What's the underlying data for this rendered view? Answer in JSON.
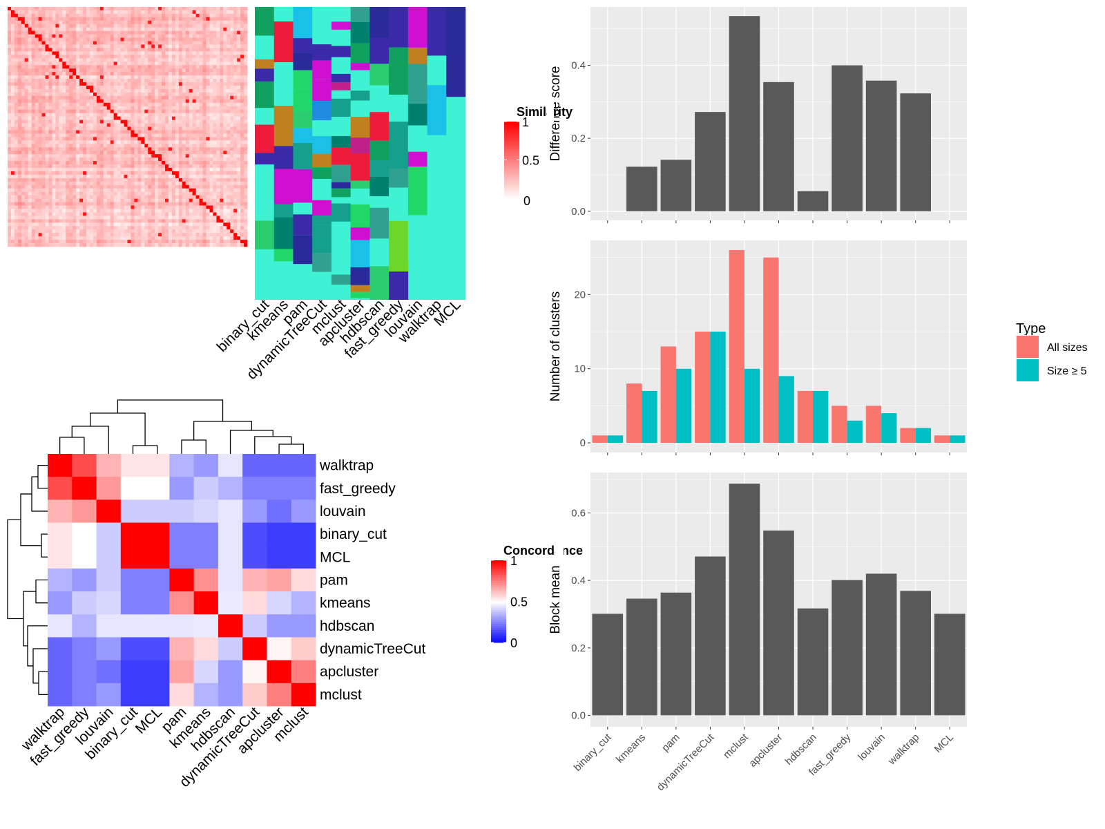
{
  "methods_order": [
    "binary_cut",
    "kmeans",
    "pam",
    "dynamicTreeCut",
    "mclust",
    "apcluster",
    "hdbscan",
    "fast_greedy",
    "louvain",
    "walktrap",
    "MCL"
  ],
  "similarity_legend": {
    "title": "Similarity",
    "ticks": [
      "1",
      "0.5",
      "0"
    ]
  },
  "concordance_legend": {
    "title": "Concordance",
    "ticks": [
      "1",
      "0.5",
      "0"
    ]
  },
  "type_legend": {
    "title": "Type",
    "items": [
      {
        "label": "All sizes",
        "color": "#F8766D"
      },
      {
        "label": "Size ≥ 5",
        "color": "#00BFC4"
      }
    ]
  },
  "colors": {
    "bar": "#595959",
    "panel_bg": "#EBEBEB",
    "grid": "#FFFFFF",
    "all_sizes": "#F8766D",
    "size_ge5": "#00BFC4"
  },
  "chart_data": [
    {
      "type": "heatmap",
      "name": "similarity_heatmap",
      "title": "",
      "legend_title": "Similarity",
      "range": [
        0,
        1
      ]
    },
    {
      "type": "heatmap",
      "name": "cluster_assignment_heatmap",
      "columns": [
        "binary_cut",
        "kmeans",
        "pam",
        "dynamicTreeCut",
        "mclust",
        "apcluster",
        "hdbscan",
        "fast_greedy",
        "louvain",
        "walktrap",
        "MCL"
      ]
    },
    {
      "type": "heatmap",
      "name": "concordance_heatmap",
      "legend_title": "Concordance",
      "range": [
        0,
        1
      ],
      "rows": [
        "walktrap",
        "fast_greedy",
        "louvain",
        "binary_cut",
        "MCL",
        "pam",
        "kmeans",
        "hdbscan",
        "dynamicTreeCut",
        "apcluster",
        "mclust"
      ],
      "columns": [
        "walktrap",
        "fast_greedy",
        "louvain",
        "binary_cut",
        "MCL",
        "pam",
        "kmeans",
        "hdbscan",
        "dynamicTreeCut",
        "apcluster",
        "mclust"
      ],
      "values": [
        [
          1.0,
          0.85,
          0.65,
          0.55,
          0.55,
          0.35,
          0.3,
          0.45,
          0.2,
          0.2,
          0.2
        ],
        [
          0.85,
          1.0,
          0.7,
          0.5,
          0.5,
          0.3,
          0.4,
          0.35,
          0.25,
          0.25,
          0.25
        ],
        [
          0.65,
          0.7,
          1.0,
          0.4,
          0.4,
          0.4,
          0.42,
          0.45,
          0.3,
          0.22,
          0.3
        ],
        [
          0.55,
          0.5,
          0.4,
          1.0,
          1.0,
          0.25,
          0.25,
          0.45,
          0.15,
          0.12,
          0.12
        ],
        [
          0.55,
          0.5,
          0.4,
          1.0,
          1.0,
          0.25,
          0.25,
          0.45,
          0.15,
          0.12,
          0.12
        ],
        [
          0.35,
          0.3,
          0.4,
          0.25,
          0.25,
          1.0,
          0.72,
          0.45,
          0.65,
          0.68,
          0.57
        ],
        [
          0.3,
          0.4,
          0.42,
          0.25,
          0.25,
          0.72,
          1.0,
          0.46,
          0.57,
          0.42,
          0.35
        ],
        [
          0.45,
          0.35,
          0.45,
          0.45,
          0.45,
          0.45,
          0.46,
          1.0,
          0.4,
          0.3,
          0.3
        ],
        [
          0.2,
          0.25,
          0.3,
          0.15,
          0.15,
          0.65,
          0.57,
          0.4,
          1.0,
          0.52,
          0.6
        ],
        [
          0.2,
          0.25,
          0.22,
          0.12,
          0.12,
          0.68,
          0.42,
          0.3,
          0.52,
          1.0,
          0.75
        ],
        [
          0.2,
          0.25,
          0.3,
          0.12,
          0.12,
          0.57,
          0.35,
          0.3,
          0.6,
          0.75,
          1.0
        ]
      ]
    },
    {
      "type": "bar",
      "name": "difference_score",
      "categories": [
        "binary_cut",
        "kmeans",
        "pam",
        "dynamicTreeCut",
        "mclust",
        "apcluster",
        "hdbscan",
        "fast_greedy",
        "louvain",
        "walktrap",
        "MCL"
      ],
      "values": [
        0,
        0.122,
        0.141,
        0.272,
        0.535,
        0.354,
        0.055,
        0.4,
        0.358,
        0.323,
        0
      ],
      "ylabel": "Difference score",
      "ylim": [
        -0.025,
        0.56
      ],
      "yticks": [
        0.0,
        0.2,
        0.4
      ],
      "ytick_labels": [
        "0.0",
        "0.2",
        "0.4"
      ]
    },
    {
      "type": "bar",
      "name": "number_of_clusters",
      "categories": [
        "binary_cut",
        "kmeans",
        "pam",
        "dynamicTreeCut",
        "mclust",
        "apcluster",
        "hdbscan",
        "fast_greedy",
        "louvain",
        "walktrap",
        "MCL"
      ],
      "series": [
        {
          "name": "All sizes",
          "values": [
            1,
            8,
            13,
            15,
            26,
            25,
            7,
            5,
            5,
            2,
            1
          ]
        },
        {
          "name": "Size ≥ 5",
          "values": [
            1,
            7,
            10,
            15,
            10,
            9,
            7,
            3,
            4,
            2,
            1
          ]
        }
      ],
      "ylabel": "Number of clusters",
      "ylim": [
        -1.3,
        27.3
      ],
      "yticks": [
        0,
        10,
        20
      ],
      "ytick_labels": [
        "0",
        "10",
        "20"
      ],
      "legend_title": "Type",
      "legend_position": "right"
    },
    {
      "type": "bar",
      "name": "block_mean",
      "categories": [
        "binary_cut",
        "kmeans",
        "pam",
        "dynamicTreeCut",
        "mclust",
        "apcluster",
        "hdbscan",
        "fast_greedy",
        "louvain",
        "walktrap",
        "MCL"
      ],
      "values": [
        0.301,
        0.346,
        0.364,
        0.471,
        0.687,
        0.548,
        0.317,
        0.401,
        0.42,
        0.369,
        0.301
      ],
      "ylabel": "Block mean",
      "ylim": [
        -0.034,
        0.72
      ],
      "yticks": [
        0.0,
        0.2,
        0.4,
        0.6
      ],
      "ytick_labels": [
        "0.0",
        "0.2",
        "0.4",
        "0.6"
      ]
    }
  ]
}
